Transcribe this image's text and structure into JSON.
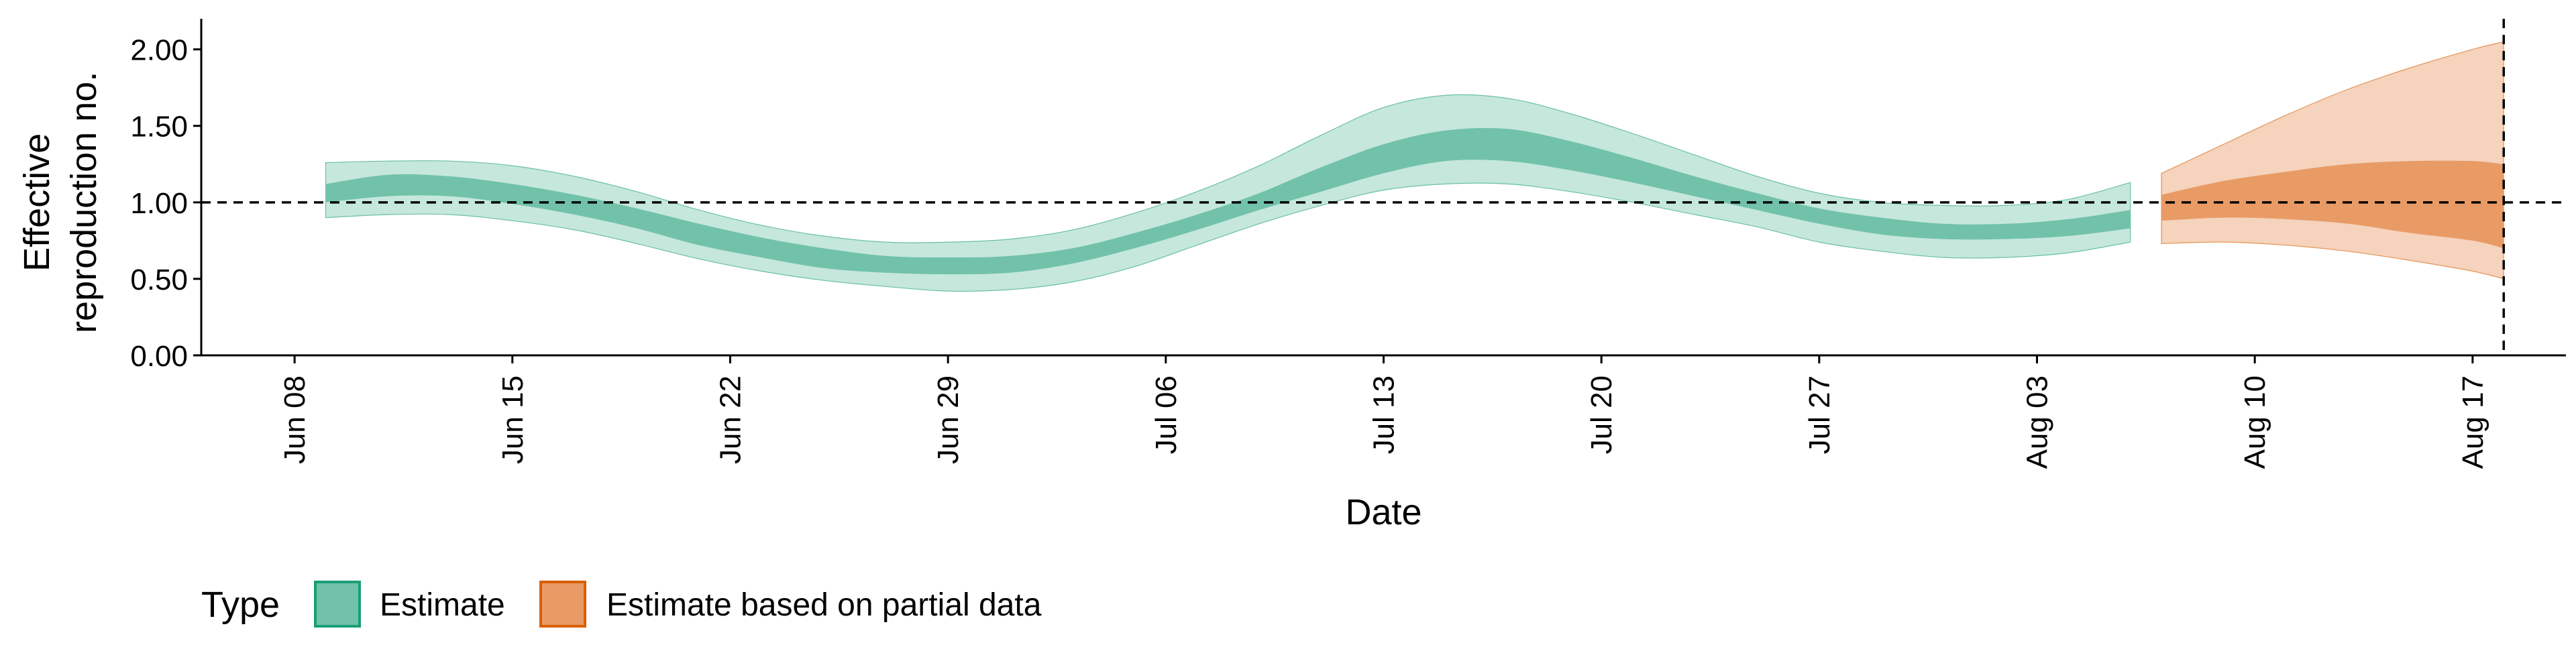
{
  "chart_data": {
    "type": "area",
    "xlabel": "Date",
    "ylabel": [
      "Effective",
      "reproduction no."
    ],
    "xlim": [
      "2020-06-05",
      "2020-08-20"
    ],
    "ylim": [
      0,
      2.2
    ],
    "yticks": [
      0,
      0.5,
      1.0,
      1.5,
      2.0
    ],
    "ytick_labels": [
      "0.00",
      "0.50",
      "1.00",
      "1.50",
      "2.00"
    ],
    "xticks": [
      "2020-06-08",
      "2020-06-15",
      "2020-06-22",
      "2020-06-29",
      "2020-07-06",
      "2020-07-13",
      "2020-07-20",
      "2020-07-27",
      "2020-08-03",
      "2020-08-10",
      "2020-08-17"
    ],
    "xtick_labels": [
      "Jun 08",
      "Jun 15",
      "Jun 22",
      "Jun 29",
      "Jul 06",
      "Jul 13",
      "Jul 20",
      "Jul 27",
      "Aug 03",
      "Aug 10",
      "Aug 17"
    ],
    "reference_line_y": 1.0,
    "reference_line_x": "2020-08-18",
    "grid": false,
    "legend": {
      "title": "Type",
      "position": "bottom-left",
      "entries": [
        {
          "label": "Estimate",
          "fill": "#72c2aa",
          "stroke": "#1b9e77"
        },
        {
          "label": "Estimate based on partial data",
          "fill": "#e99b66",
          "stroke": "#d95f02"
        }
      ]
    },
    "series": [
      {
        "name": "Estimate",
        "outer_fill": "#c6e7dc",
        "inner_fill": "#72c2aa",
        "outline": "#1b9e77",
        "x": [
          "2020-06-09",
          "2020-06-11",
          "2020-06-13",
          "2020-06-15",
          "2020-06-17",
          "2020-06-19",
          "2020-06-21",
          "2020-06-23",
          "2020-06-25",
          "2020-06-27",
          "2020-06-29",
          "2020-07-01",
          "2020-07-03",
          "2020-07-05",
          "2020-07-07",
          "2020-07-09",
          "2020-07-11",
          "2020-07-13",
          "2020-07-15",
          "2020-07-17",
          "2020-07-19",
          "2020-07-21",
          "2020-07-23",
          "2020-07-25",
          "2020-07-27",
          "2020-07-29",
          "2020-07-31",
          "2020-08-02",
          "2020-08-04",
          "2020-08-06"
        ],
        "outer_lower": [
          0.9,
          0.92,
          0.92,
          0.88,
          0.82,
          0.73,
          0.63,
          0.55,
          0.49,
          0.45,
          0.42,
          0.43,
          0.48,
          0.58,
          0.72,
          0.86,
          0.98,
          1.08,
          1.12,
          1.12,
          1.07,
          1.0,
          0.92,
          0.84,
          0.74,
          0.68,
          0.64,
          0.64,
          0.67,
          0.74
        ],
        "inner_lower": [
          1.0,
          1.04,
          1.04,
          0.99,
          0.92,
          0.83,
          0.72,
          0.64,
          0.57,
          0.54,
          0.53,
          0.54,
          0.6,
          0.7,
          0.82,
          0.95,
          1.07,
          1.19,
          1.27,
          1.27,
          1.21,
          1.13,
          1.04,
          0.95,
          0.86,
          0.79,
          0.76,
          0.76,
          0.78,
          0.83
        ],
        "inner_upper": [
          1.12,
          1.18,
          1.17,
          1.12,
          1.05,
          0.96,
          0.86,
          0.77,
          0.7,
          0.65,
          0.64,
          0.65,
          0.7,
          0.8,
          0.92,
          1.06,
          1.23,
          1.38,
          1.47,
          1.48,
          1.4,
          1.29,
          1.17,
          1.06,
          0.96,
          0.9,
          0.86,
          0.86,
          0.89,
          0.95
        ],
        "outer_upper": [
          1.26,
          1.27,
          1.27,
          1.24,
          1.17,
          1.07,
          0.95,
          0.85,
          0.78,
          0.74,
          0.74,
          0.76,
          0.82,
          0.93,
          1.07,
          1.24,
          1.44,
          1.62,
          1.7,
          1.68,
          1.58,
          1.45,
          1.31,
          1.17,
          1.06,
          1.0,
          0.98,
          0.98,
          1.02,
          1.13
        ]
      },
      {
        "name": "Estimate based on partial data",
        "outer_fill": "#f5d3bc",
        "inner_fill": "#e99b66",
        "outline": "#d95f02",
        "x": [
          "2020-08-07",
          "2020-08-09",
          "2020-08-11",
          "2020-08-13",
          "2020-08-15",
          "2020-08-17",
          "2020-08-18"
        ],
        "outer_lower": [
          0.73,
          0.74,
          0.72,
          0.68,
          0.62,
          0.55,
          0.5
        ],
        "inner_lower": [
          0.88,
          0.9,
          0.89,
          0.86,
          0.8,
          0.75,
          0.7
        ],
        "inner_upper": [
          1.05,
          1.14,
          1.2,
          1.25,
          1.27,
          1.27,
          1.25
        ],
        "outer_upper": [
          1.19,
          1.38,
          1.57,
          1.74,
          1.88,
          2.0,
          2.05
        ]
      }
    ]
  }
}
